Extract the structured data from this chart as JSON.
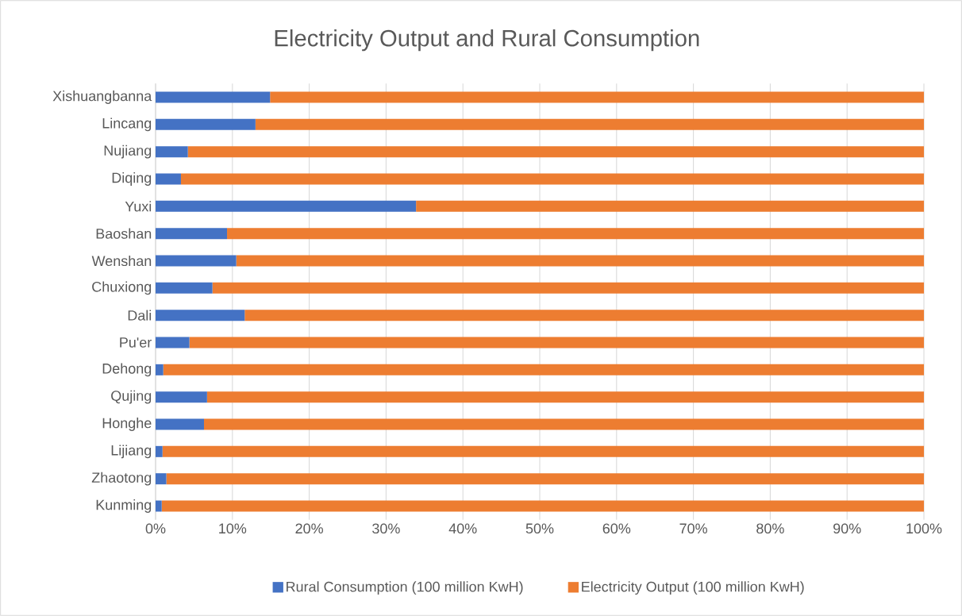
{
  "chart_data": {
    "type": "bar",
    "title": "Electricity Output and Rural Consumption",
    "orientation": "horizontal",
    "stacked": true,
    "categories": [
      "Xishuangbanna",
      "Lincang",
      "Nujiang",
      "Diqing",
      "Yuxi",
      "Baoshan",
      "Wenshan",
      "Chuxiong",
      "Dali",
      "Pu'er",
      "Dehong",
      "Qujing",
      "Honghe",
      "Lijiang",
      "Zhaotong",
      "Kunming"
    ],
    "series": [
      {
        "name": "Rural Consumption (100 million KwH)",
        "color": "#4472c4",
        "values": [
          14.9,
          13.0,
          4.2,
          3.3,
          33.9,
          9.3,
          10.5,
          7.4,
          11.6,
          4.4,
          1.0,
          6.7,
          6.3,
          0.9,
          1.4,
          0.8
        ]
      },
      {
        "name": "Electricity Output (100 million KwH)",
        "color": "#ed7d31",
        "values": [
          85.1,
          87.0,
          95.8,
          96.7,
          66.1,
          90.7,
          89.5,
          92.6,
          88.4,
          95.6,
          99.0,
          93.3,
          93.7,
          99.1,
          98.6,
          99.2
        ]
      }
    ],
    "xlim": [
      0,
      100
    ],
    "xticks": [
      {
        "value": 0,
        "label": "0%"
      },
      {
        "value": 10,
        "label": "10%"
      },
      {
        "value": 20,
        "label": "20%"
      },
      {
        "value": 30,
        "label": "30%"
      },
      {
        "value": 40,
        "label": "40%"
      },
      {
        "value": 50,
        "label": "50%"
      },
      {
        "value": 60,
        "label": "60%"
      },
      {
        "value": 70,
        "label": "70%"
      },
      {
        "value": 80,
        "label": "80%"
      },
      {
        "value": 90,
        "label": "90%"
      },
      {
        "value": 100,
        "label": "100%"
      }
    ],
    "grid": "x",
    "legend": "bottom"
  }
}
